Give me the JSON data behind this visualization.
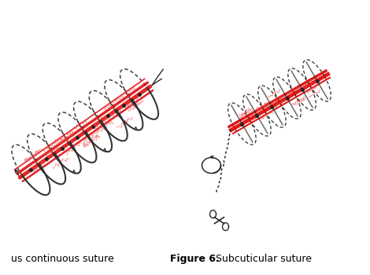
{
  "background_color": "#ffffff",
  "label_left_text": "us continuous suture",
  "label_right_bold": "Figure 6.",
  "label_right_normal": " Subcuticular suture",
  "fig_width": 4.7,
  "fig_height": 3.5,
  "dpi": 100,
  "red_color": "#dd0000",
  "black_color": "#1a1a1a",
  "dark_gray": "#2a2a2a",
  "dot_color": "#222222",
  "light_red": "#ee4444"
}
